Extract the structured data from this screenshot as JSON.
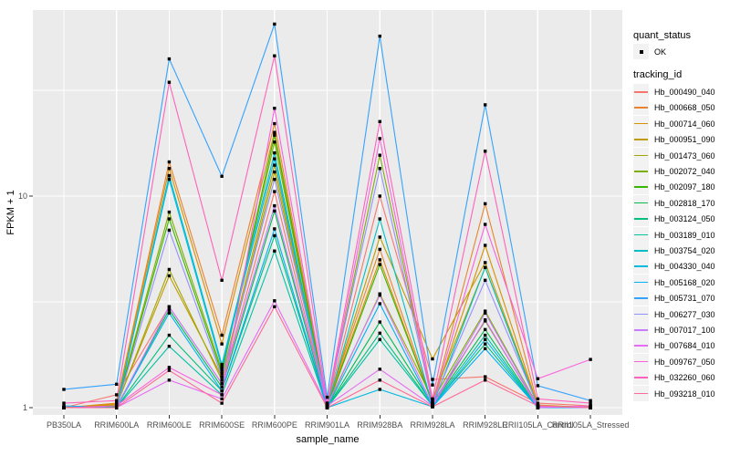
{
  "figure": {
    "panel_bg": "#EBEBEB",
    "grid_color": "#FFFFFF",
    "tick_color": "#333333",
    "tick_text_color": "#4D4D4D",
    "legend_key_bg": "#F2F2F2",
    "marker_color": "#000000"
  },
  "legend": {
    "quant_status_title": "quant_status",
    "quant_status_items": [
      {
        "label": "OK"
      }
    ],
    "tracking_id_title": "tracking_id"
  },
  "chart_data": {
    "type": "line",
    "title": "",
    "xlabel": "sample_name",
    "ylabel": "FPKM + 1",
    "y_scale": "log10",
    "ylim": [
      0.92,
      76
    ],
    "grid": true,
    "legend_position": "right",
    "y_ticks": [
      {
        "label": "1",
        "value": 1
      },
      {
        "label": "10",
        "value": 10
      }
    ],
    "y_minor_breaks": [
      3.162,
      31.62
    ],
    "categories": [
      "PB350LA",
      "RRIM600LA",
      "RRIM600LE",
      "RRIM600SE",
      "RRIM600PE",
      "RRIM901LA",
      "RRIM928BA",
      "RRIM928LA",
      "RRIM928LE",
      "RRII105LA_Control",
      "RRII105LA_Stressed"
    ],
    "series": [
      {
        "name": "Hb_000490_040",
        "color": "#F8766D",
        "values": [
          1.0,
          1.15,
          3.0,
          1.3,
          10.5,
          1.02,
          10.0,
          1.36,
          1.4,
          1.05,
          1.02
        ]
      },
      {
        "name": "Hb_000668_050",
        "color": "#EA8331",
        "values": [
          1.0,
          1.05,
          14.5,
          2.2,
          22.0,
          1.03,
          5.6,
          1.05,
          9.2,
          1.03,
          1.0
        ]
      },
      {
        "name": "Hb_000714_060",
        "color": "#D89000",
        "values": [
          1.0,
          1.04,
          13.5,
          2.0,
          20.0,
          1.02,
          5.0,
          1.04,
          5.85,
          1.02,
          1.0
        ]
      },
      {
        "name": "Hb_000951_090",
        "color": "#C09B00",
        "values": [
          1.0,
          1.03,
          4.2,
          1.4,
          14.0,
          1.02,
          6.4,
          1.7,
          4.85,
          1.02,
          1.01
        ]
      },
      {
        "name": "Hb_001473_060",
        "color": "#A3A500",
        "values": [
          1.0,
          1.02,
          4.5,
          1.35,
          13.0,
          1.01,
          3.45,
          1.1,
          4.6,
          1.01,
          1.0
        ]
      },
      {
        "name": "Hb_002072_040",
        "color": "#7CAE00",
        "values": [
          1.0,
          1.02,
          8.4,
          1.5,
          18.0,
          1.02,
          15.6,
          1.08,
          2.86,
          1.02,
          1.0
        ]
      },
      {
        "name": "Hb_002097_180",
        "color": "#39B600",
        "values": [
          1.0,
          1.01,
          7.8,
          1.45,
          19.4,
          1.01,
          4.75,
          1.05,
          2.57,
          1.01,
          1.0
        ]
      },
      {
        "name": "Hb_002818_170",
        "color": "#00BB4E",
        "values": [
          1.0,
          1.01,
          2.9,
          1.25,
          8.5,
          1.0,
          2.54,
          1.03,
          2.34,
          1.0,
          1.0
        ]
      },
      {
        "name": "Hb_003124_050",
        "color": "#00BF7D",
        "values": [
          1.0,
          1.0,
          2.2,
          1.2,
          6.5,
          1.0,
          2.25,
          1.02,
          2.0,
          1.0,
          1.0
        ]
      },
      {
        "name": "Hb_003189_010",
        "color": "#00C1A3",
        "values": [
          1.0,
          1.0,
          1.95,
          1.15,
          5.5,
          1.0,
          2.1,
          1.02,
          2.2,
          1.0,
          1.0
        ]
      },
      {
        "name": "Hb_003754_020",
        "color": "#00BFC4",
        "values": [
          1.0,
          1.0,
          12.5,
          1.6,
          16.0,
          1.0,
          7.8,
          1.02,
          4.6,
          1.01,
          1.0
        ]
      },
      {
        "name": "Hb_004330_040",
        "color": "#00BAE0",
        "values": [
          1.0,
          1.0,
          12.0,
          1.55,
          15.0,
          1.0,
          1.22,
          1.01,
          2.1,
          1.0,
          1.0
        ]
      },
      {
        "name": "Hb_005168_020",
        "color": "#00B0F6",
        "values": [
          1.02,
          1.0,
          2.8,
          1.2,
          7.0,
          1.0,
          3.1,
          1.01,
          1.9,
          1.0,
          1.0
        ]
      },
      {
        "name": "Hb_005731_070",
        "color": "#35A2FF",
        "values": [
          1.22,
          1.29,
          44.5,
          12.4,
          65.0,
          1.12,
          57.0,
          1.28,
          27.0,
          1.27,
          1.08
        ]
      },
      {
        "name": "Hb_006277_030",
        "color": "#9590FF",
        "values": [
          1.0,
          1.0,
          6.9,
          1.4,
          12.0,
          1.05,
          13.5,
          1.05,
          4.0,
          1.02,
          1.0
        ]
      },
      {
        "name": "Hb_007017_100",
        "color": "#C77CFF",
        "values": [
          1.0,
          1.0,
          3.0,
          1.3,
          9.0,
          1.03,
          3.4,
          1.03,
          2.8,
          1.01,
          1.0
        ]
      },
      {
        "name": "Hb_007684_010",
        "color": "#E76BF3",
        "values": [
          1.0,
          1.0,
          1.35,
          1.1,
          3.2,
          1.02,
          1.52,
          1.02,
          2.6,
          1.0,
          1.02
        ]
      },
      {
        "name": "Hb_009767_050",
        "color": "#FA62DB",
        "values": [
          1.0,
          1.02,
          1.55,
          1.15,
          26.0,
          1.03,
          18.7,
          1.04,
          7.35,
          1.37,
          1.69
        ]
      },
      {
        "name": "Hb_032260_060",
        "color": "#FF62BC",
        "values": [
          1.05,
          1.08,
          34.5,
          4.0,
          46.0,
          1.05,
          22.5,
          1.1,
          16.3,
          1.1,
          1.05
        ]
      },
      {
        "name": "Hb_093218_010",
        "color": "#FF6A98",
        "values": [
          1.0,
          1.0,
          1.5,
          1.05,
          3.0,
          1.0,
          1.35,
          1.01,
          1.35,
          1.02,
          1.0
        ]
      }
    ]
  }
}
